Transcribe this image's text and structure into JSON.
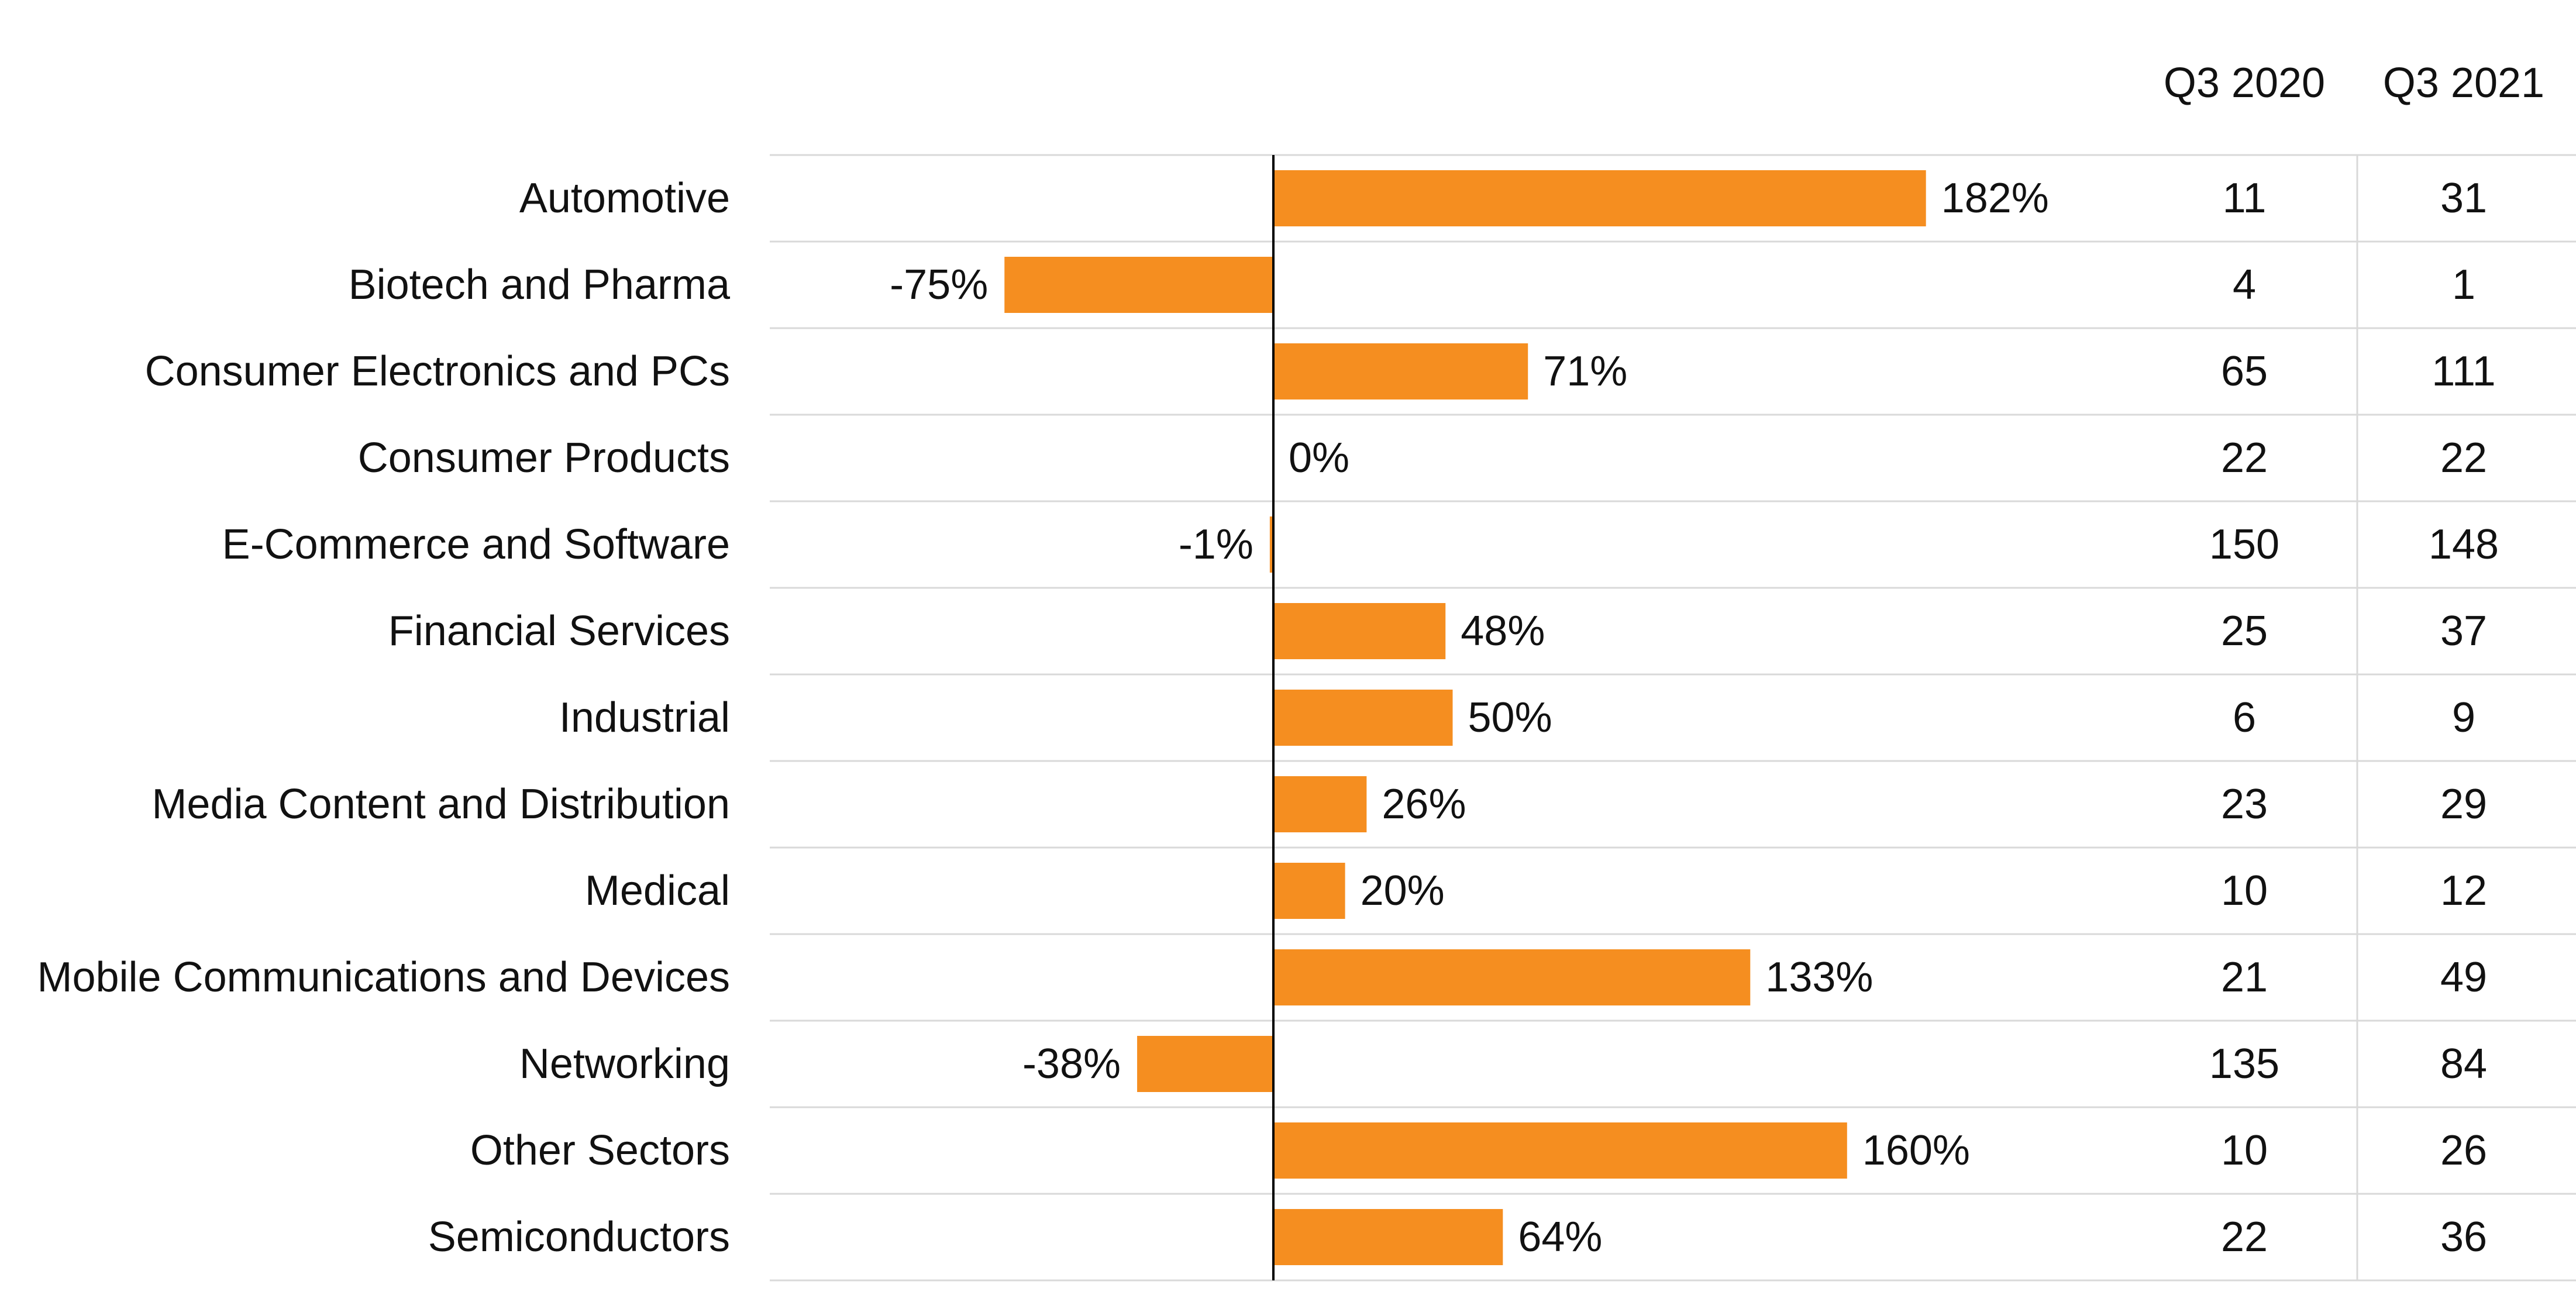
{
  "chart_data": {
    "type": "bar",
    "orientation": "horizontal",
    "categories": [
      "Automotive",
      "Biotech and Pharma",
      "Consumer Electronics and PCs",
      "Consumer Products",
      "E-Commerce and Software",
      "Financial Services",
      "Industrial",
      "Media Content and Distribution",
      "Medical",
      "Mobile Communications and Devices",
      "Networking",
      "Other Sectors",
      "Semiconductors"
    ],
    "values": [
      182,
      -75,
      71,
      0,
      -1,
      48,
      50,
      26,
      20,
      133,
      -38,
      160,
      64
    ],
    "value_labels": [
      "182%",
      "-75%",
      "71%",
      "0%",
      "-1%",
      "48%",
      "50%",
      "26%",
      "20%",
      "133%",
      "-38%",
      "160%",
      "64%"
    ],
    "bar_color": "#F58E20",
    "grid": true,
    "table": {
      "columns": [
        "Q3 2020",
        "Q3 2021"
      ],
      "rows": [
        [
          11,
          31
        ],
        [
          4,
          1
        ],
        [
          65,
          111
        ],
        [
          22,
          22
        ],
        [
          150,
          148
        ],
        [
          25,
          37
        ],
        [
          6,
          9
        ],
        [
          23,
          29
        ],
        [
          10,
          12
        ],
        [
          21,
          49
        ],
        [
          135,
          84
        ],
        [
          10,
          26
        ],
        [
          22,
          36
        ]
      ]
    }
  }
}
